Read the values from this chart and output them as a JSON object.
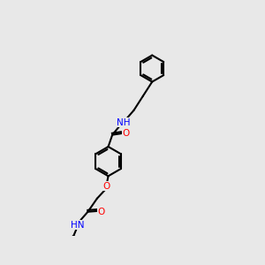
{
  "background_color": "#e8e8e8",
  "bond_color": "#000000",
  "bond_width": 1.5,
  "atom_colors": {
    "O": "#ff0000",
    "N": "#0000ff",
    "C": "#000000"
  },
  "font_size_atom": 7.5,
  "font_size_small": 6.5
}
